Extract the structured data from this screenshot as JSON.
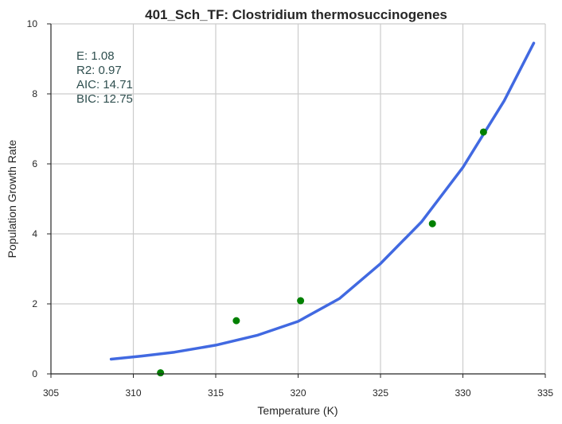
{
  "chart_data": {
    "type": "scatter",
    "title": "401_Sch_TF: Clostridium thermosuccinogenes",
    "xlabel": "Temperature (K)",
    "ylabel": "Population Growth Rate",
    "xlim": [
      305,
      335
    ],
    "ylim": [
      0,
      10
    ],
    "xticks": [
      305,
      310,
      315,
      320,
      325,
      330,
      335
    ],
    "yticks": [
      0,
      2,
      4,
      6,
      8,
      10
    ],
    "grid": true,
    "series": [
      {
        "kind": "points",
        "color": "#008000",
        "x": [
          311.65,
          316.25,
          320.15,
          328.15,
          331.25
        ],
        "y": [
          0.03,
          1.52,
          2.09,
          4.29,
          6.91
        ]
      },
      {
        "kind": "fitted_curve",
        "color": "#4169e1",
        "x": [
          308.65,
          310.5,
          312.5,
          315,
          317.5,
          320,
          322.5,
          325,
          327.5,
          330,
          332.5,
          334.3
        ],
        "y": [
          0.42,
          0.51,
          0.62,
          0.82,
          1.1,
          1.5,
          2.15,
          3.15,
          4.35,
          5.9,
          7.8,
          9.45
        ]
      }
    ],
    "annotation_lines": [
      "E:  1.08",
      "R2:  0.97",
      "AIC: 14.71",
      "BIC: 12.75"
    ]
  }
}
